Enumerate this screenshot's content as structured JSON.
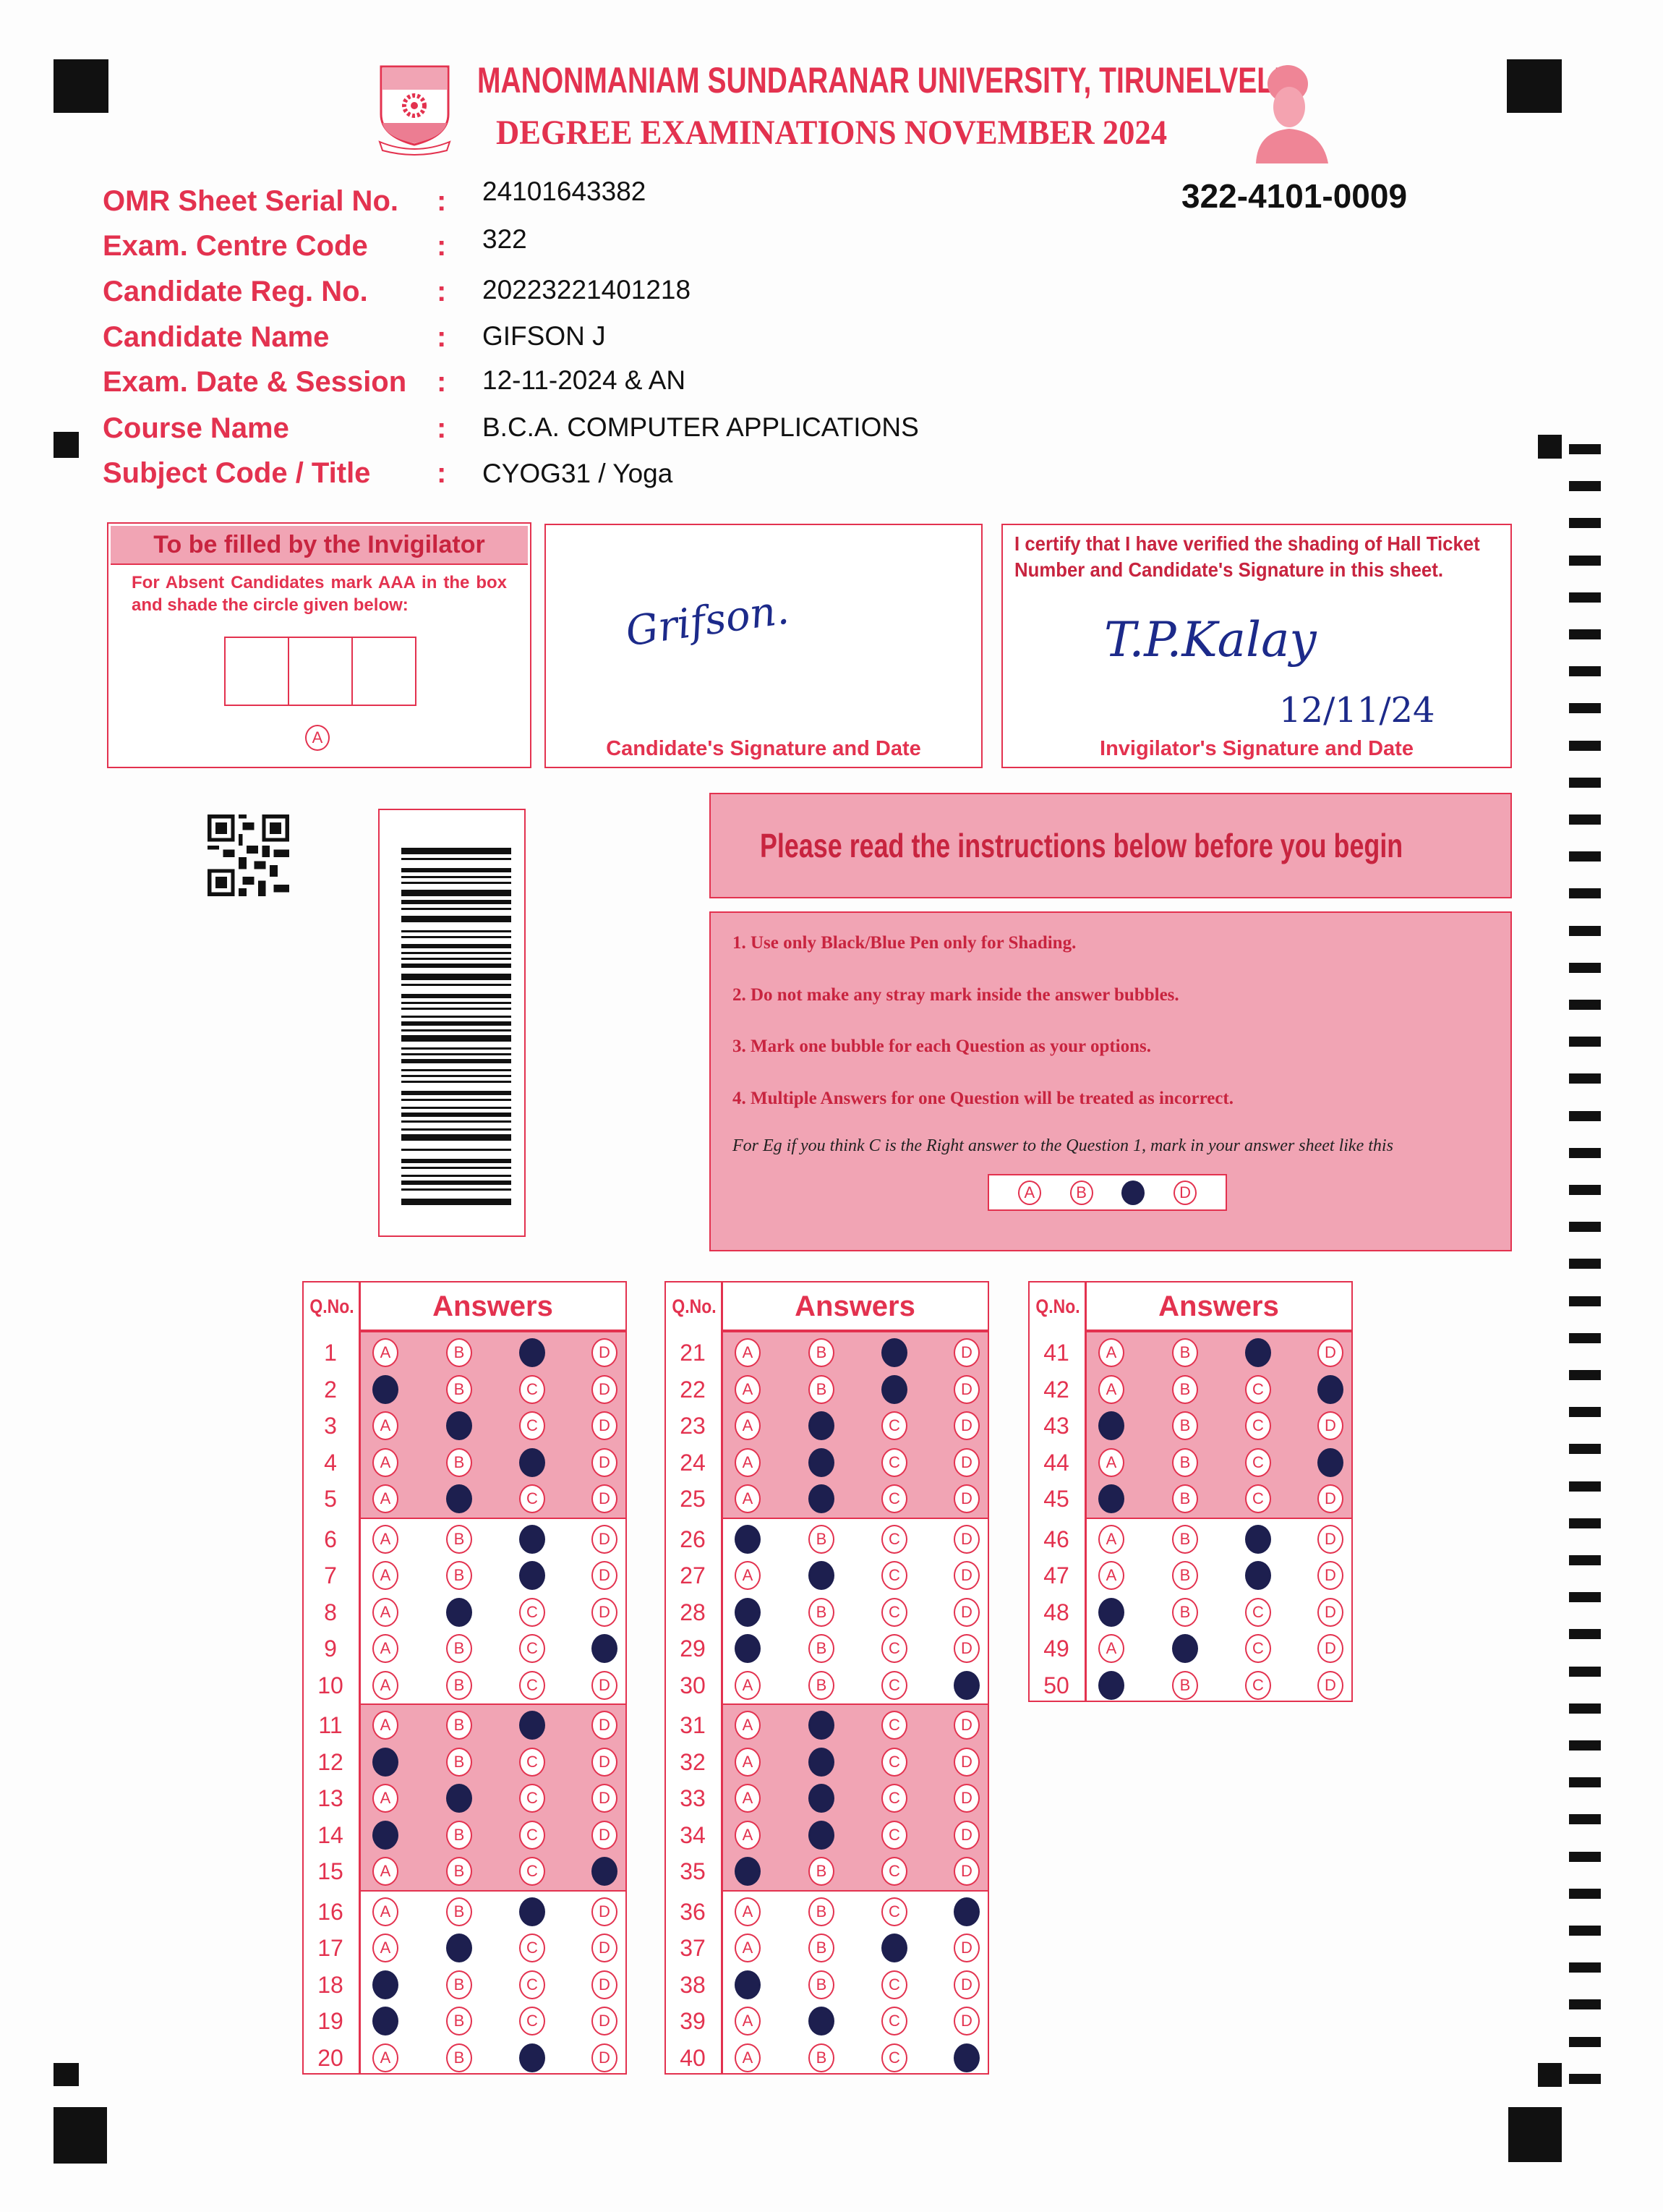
{
  "header": {
    "university": "MANONMANIAM SUNDARANAR UNIVERSITY, TIRUNELVELI",
    "exam": "DEGREE EXAMINATIONS NOVEMBER 2024",
    "sheet_code": "322-4101-0009",
    "logo_icon": "university-emblem",
    "portrait_icon": "founder-portrait"
  },
  "fields": [
    {
      "label": "OMR Sheet Serial No.",
      "value": "24101643382"
    },
    {
      "label": "Exam. Centre Code",
      "value": "322"
    },
    {
      "label": "Candidate Reg. No.",
      "value": "20223221401218"
    },
    {
      "label": "Candidate Name",
      "value": "GIFSON J"
    },
    {
      "label": "Exam. Date & Session",
      "value": "12-11-2024 & AN"
    },
    {
      "label": "Course Name",
      "value": "B.C.A. COMPUTER APPLICATIONS"
    },
    {
      "label": "Subject Code / Title",
      "value": "CYOG31 / Yoga"
    }
  ],
  "colon": ":",
  "invigilator_box": {
    "title": "To be filled by the Invigilator",
    "instruction": "For Absent Candidates mark AAA in the box and shade the circle given below:",
    "absent_option": "A"
  },
  "candidate_signature": {
    "signature": "Grifson.",
    "label": "Candidate's Signature and Date"
  },
  "invigilator_signature": {
    "certify_text": "I certify that I have verified the shading of Hall Ticket Number and Candidate's Signature in this sheet.",
    "signature": "T.P.Kalay",
    "date": "12/11/24",
    "label": "Invigilator's Signature and Date"
  },
  "instructions": {
    "title": "Please read the instructions below before you begin",
    "items": [
      "1. Use only Black/Blue Pen only for Shading.",
      "2. Do not make any stray mark inside the answer bubbles.",
      "3. Mark one bubble for each Question as your options.",
      "4. Multiple Answers for one Question will be treated as incorrect."
    ],
    "example_text": "For Eg if you think C is the Right answer to the Question 1, mark in your answer sheet like this",
    "example_options": [
      "A",
      "B",
      "C",
      "D"
    ],
    "example_marked": "C"
  },
  "answer_sheet": {
    "q_no_header": "Q.No.",
    "answers_header": "Answers",
    "options": [
      "A",
      "B",
      "C",
      "D"
    ],
    "columns": [
      {
        "from": 1,
        "to": 20
      },
      {
        "from": 21,
        "to": 40
      },
      {
        "from": 41,
        "to": 50
      }
    ],
    "responses": [
      "C",
      "A",
      "B",
      "C",
      "B",
      "C",
      "C",
      "B",
      "D",
      null,
      "C",
      "A",
      "B",
      "A",
      "D",
      "C",
      "B",
      "A",
      "A",
      "C",
      "C",
      "C",
      "B",
      "B",
      "B",
      "A",
      "B",
      "A",
      "A",
      "D",
      "B",
      "B",
      "B",
      "B",
      "A",
      "D",
      "C",
      "A",
      "B",
      "D",
      "C",
      "D",
      "A",
      "D",
      "A",
      "C",
      "C",
      "A",
      "B",
      "A"
    ]
  },
  "colors": {
    "print_red": "#e3324f",
    "band_pink": "#f1a4b4",
    "ink": "#1d1f4f"
  }
}
